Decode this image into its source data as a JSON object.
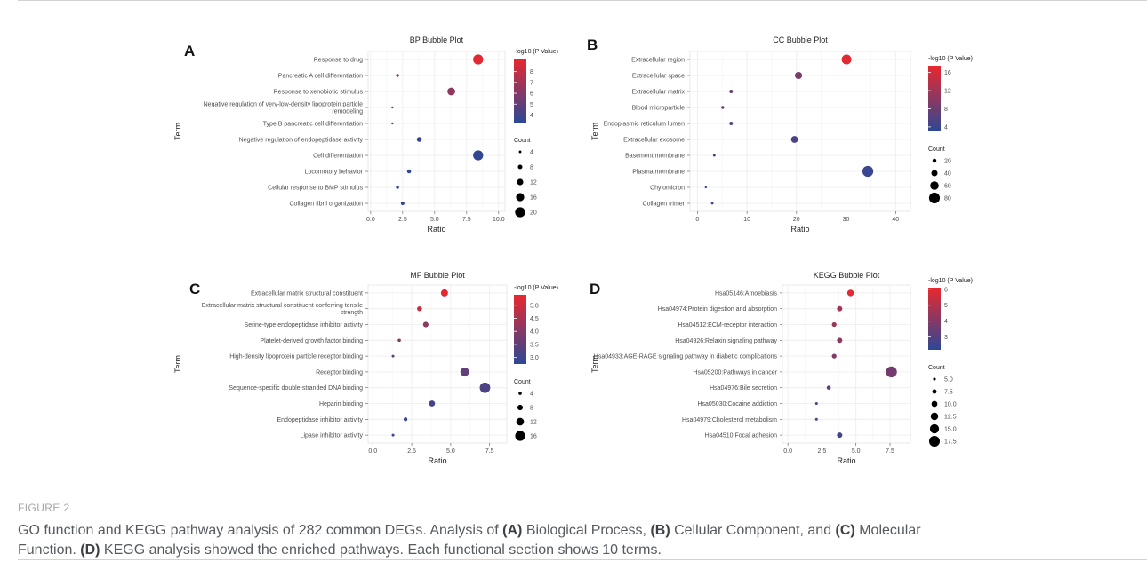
{
  "figure": {
    "caption_label": "FIGURE 2",
    "caption_lines": [
      [
        "GO function and KEGG pathway analysis of 282 common DEGs. Analysis of ",
        "(A)",
        " Biological Process, ",
        "(B)",
        " Cellular Component, and ",
        "(C)",
        " Molecular"
      ],
      [
        "Function. ",
        "(D)",
        " KEGG analysis showed the enriched pathways. Each functional section shows 10 terms."
      ]
    ]
  },
  "colors": {
    "low": "#2c4896",
    "high": "#e8282e",
    "grid": "#ececec",
    "axis": "#4d4d4d"
  },
  "chart_data": [
    {
      "panel": "A",
      "type": "scatter",
      "title": "BP Bubble Plot",
      "xlabel": "Ratio",
      "ylabel": "Term",
      "xlim": [
        -0.2,
        10.5
      ],
      "xticks": [
        "0.0",
        "2.5",
        "5.0",
        "7.5",
        "10.0"
      ],
      "color_legend_title": "-log10 (P Value)",
      "color_ticks": [
        "8",
        "7",
        "6",
        "5",
        "4"
      ],
      "color_range": [
        3.3,
        9.2
      ],
      "size_legend_title": "Count",
      "size_ticks": [
        "4",
        "8",
        "12",
        "16",
        "20"
      ],
      "size_range": [
        3,
        22
      ],
      "points": [
        {
          "term": "Response to drug",
          "ratio": 8.4,
          "pvalue": 9.0,
          "count": 20
        },
        {
          "term": "Pancreatic A cell differentiation",
          "ratio": 2.1,
          "pvalue": 6.3,
          "count": 5
        },
        {
          "term": "Response to xenobiotic stimulus",
          "ratio": 6.3,
          "pvalue": 6.4,
          "count": 15
        },
        {
          "term": "Negative regulation of very-low-density lipoprotein particle remodeling",
          "ratio": 1.7,
          "pvalue": 4.8,
          "count": 3
        },
        {
          "term": "Type B pancreatic cell differentiation",
          "ratio": 1.7,
          "pvalue": 4.5,
          "count": 3
        },
        {
          "term": "Negative regulation of endopeptidase activity",
          "ratio": 3.8,
          "pvalue": 3.7,
          "count": 9
        },
        {
          "term": "Cell differentiation",
          "ratio": 8.4,
          "pvalue": 3.5,
          "count": 20
        },
        {
          "term": "Locomotory behavior",
          "ratio": 3.0,
          "pvalue": 3.4,
          "count": 7
        },
        {
          "term": "Cellular response to BMP stimulus",
          "ratio": 2.1,
          "pvalue": 3.4,
          "count": 5
        },
        {
          "term": "Collagen fibril organization",
          "ratio": 2.5,
          "pvalue": 3.4,
          "count": 6
        }
      ]
    },
    {
      "panel": "B",
      "type": "scatter",
      "title": "CC Bubble Plot",
      "xlabel": "Ratio",
      "ylabel": "Term",
      "xlim": [
        -1.5,
        43
      ],
      "xticks": [
        "0",
        "10",
        "20",
        "30",
        "40"
      ],
      "color_legend_title": "-log10 (P Value)",
      "color_ticks": [
        "16",
        "12",
        "8",
        "4"
      ],
      "color_range": [
        3,
        17.5
      ],
      "size_legend_title": "Count",
      "size_ticks": [
        "20",
        "40",
        "60",
        "80"
      ],
      "size_range": [
        4,
        82
      ],
      "points": [
        {
          "term": "Extracellular region",
          "ratio": 30.1,
          "pvalue": 17.0,
          "count": 71
        },
        {
          "term": "Extracellular space",
          "ratio": 20.4,
          "pvalue": 8.8,
          "count": 48
        },
        {
          "term": "Extracellular matrix",
          "ratio": 6.8,
          "pvalue": 7.8,
          "count": 16
        },
        {
          "term": "Blood microparticle",
          "ratio": 5.1,
          "pvalue": 7.6,
          "count": 12
        },
        {
          "term": "Endoplasmic reticulum lumen",
          "ratio": 6.8,
          "pvalue": 6.5,
          "count": 16
        },
        {
          "term": "Extracellular exosome",
          "ratio": 19.6,
          "pvalue": 5.2,
          "count": 46
        },
        {
          "term": "Basement membrane",
          "ratio": 3.4,
          "pvalue": 4.6,
          "count": 8
        },
        {
          "term": "Plasma membrane",
          "ratio": 34.4,
          "pvalue": 4.1,
          "count": 81
        },
        {
          "term": "Chylomicron",
          "ratio": 1.7,
          "pvalue": 3.9,
          "count": 4
        },
        {
          "term": "Collagen trimer",
          "ratio": 3.0,
          "pvalue": 3.8,
          "count": 7
        }
      ]
    },
    {
      "panel": "C",
      "type": "scatter",
      "title": "MF Bubble Plot",
      "xlabel": "Ratio",
      "ylabel": "Term",
      "xlim": [
        -0.3,
        8.6
      ],
      "xticks": [
        "0.0",
        "2.5",
        "5.0",
        "7.5"
      ],
      "color_legend_title": "-log10 (P Value)",
      "color_ticks": [
        "5.0",
        "4.5",
        "4.0",
        "3.5",
        "3.0"
      ],
      "color_range": [
        2.75,
        5.4
      ],
      "size_legend_title": "Count",
      "size_ticks": [
        "4",
        "8",
        "12",
        "16"
      ],
      "size_range": [
        2,
        18
      ],
      "points": [
        {
          "term": "Extracellular matrix structural constituent",
          "ratio": 4.6,
          "pvalue": 5.3,
          "count": 11
        },
        {
          "term": "Extracellular matrix structural constituent conferring tensile strength",
          "ratio": 3.0,
          "pvalue": 4.9,
          "count": 7
        },
        {
          "term": "Serine-type endopeptidase inhibitor activity",
          "ratio": 3.4,
          "pvalue": 4.1,
          "count": 8
        },
        {
          "term": "Platelet-derived growth factor binding",
          "ratio": 1.7,
          "pvalue": 4.0,
          "count": 4
        },
        {
          "term": "High-density lipoprotein particle receptor binding",
          "ratio": 1.3,
          "pvalue": 3.5,
          "count": 3
        },
        {
          "term": "Receptor binding",
          "ratio": 5.9,
          "pvalue": 3.5,
          "count": 14
        },
        {
          "term": "Sequence-specific double-stranded DNA binding",
          "ratio": 7.2,
          "pvalue": 3.2,
          "count": 17
        },
        {
          "term": "Heparin binding",
          "ratio": 3.8,
          "pvalue": 3.1,
          "count": 9
        },
        {
          "term": "Endopeptidase inhibitor activity",
          "ratio": 2.1,
          "pvalue": 2.9,
          "count": 5
        },
        {
          "term": "Lipase inhibitor activity",
          "ratio": 1.3,
          "pvalue": 2.9,
          "count": 3
        }
      ]
    },
    {
      "panel": "D",
      "type": "scatter",
      "title": "KEGG Bubble Plot",
      "xlabel": "Ratio",
      "ylabel": "Term",
      "xlim": [
        -0.4,
        9.0
      ],
      "xticks": [
        "0.0",
        "2.5",
        "5.0",
        "7.5"
      ],
      "color_legend_title": "-log10 (P Value)",
      "color_ticks": [
        "6",
        "5",
        "4",
        "3"
      ],
      "color_range": [
        2.2,
        6.1
      ],
      "size_legend_title": "Count",
      "size_ticks": [
        "5.0",
        "7.5",
        "10.0",
        "12.5",
        "15.0",
        "17.5"
      ],
      "size_range": [
        4,
        18
      ],
      "points": [
        {
          "term": "Hsa05146:Amoebiasis",
          "ratio": 4.6,
          "pvalue": 6.0,
          "count": 11
        },
        {
          "term": "Hsa04974:Protein digestion and absorption",
          "ratio": 3.8,
          "pvalue": 4.7,
          "count": 9
        },
        {
          "term": "Hsa04512:ECM-receptor interaction",
          "ratio": 3.4,
          "pvalue": 4.5,
          "count": 8
        },
        {
          "term": "Hsa04926:Relaxin signaling pathway",
          "ratio": 3.8,
          "pvalue": 4.2,
          "count": 9
        },
        {
          "term": "Hsa04933:AGE-RAGE signaling pathway in diabetic complications",
          "ratio": 3.4,
          "pvalue": 4.0,
          "count": 8
        },
        {
          "term": "Hsa05200:Pathways in cancer",
          "ratio": 7.6,
          "pvalue": 3.7,
          "count": 18
        },
        {
          "term": "Hsa04976:Bile secretion",
          "ratio": 3.0,
          "pvalue": 3.3,
          "count": 7
        },
        {
          "term": "Hsa05030:Cocaine addiction",
          "ratio": 2.1,
          "pvalue": 3.0,
          "count": 5
        },
        {
          "term": "Hsa04979:Cholesterol metabolism",
          "ratio": 2.1,
          "pvalue": 2.9,
          "count": 5
        },
        {
          "term": "Hsa04510:Focal adhesion",
          "ratio": 3.8,
          "pvalue": 2.7,
          "count": 9
        }
      ]
    }
  ]
}
